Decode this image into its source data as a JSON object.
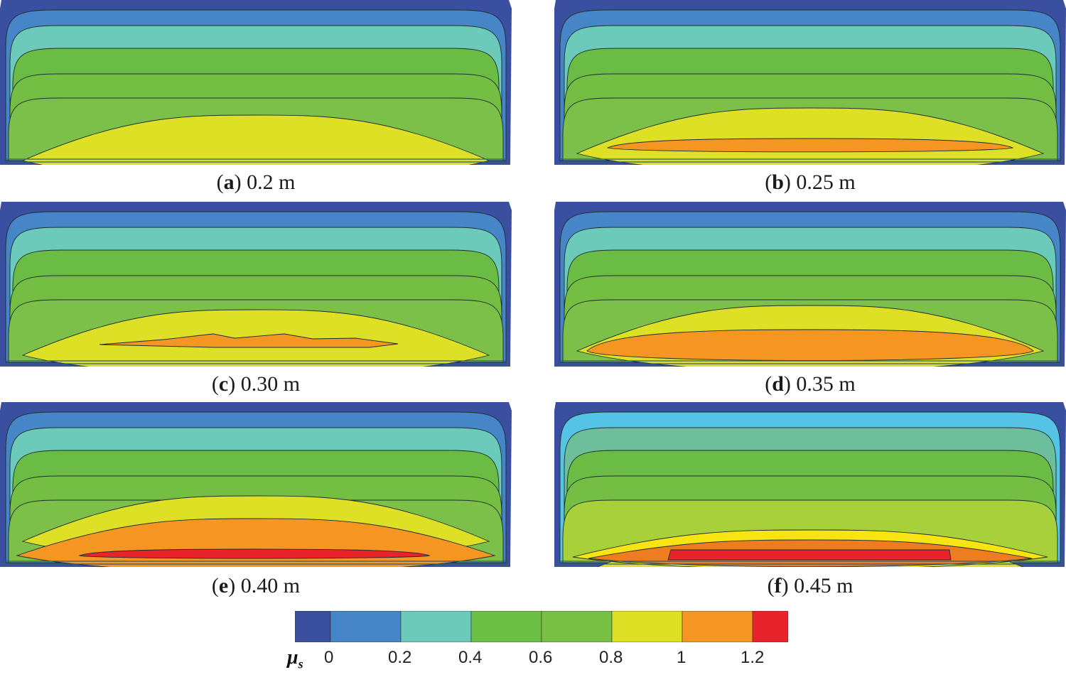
{
  "figure": {
    "panels": [
      {
        "id": "a",
        "letter": "a",
        "label": "0.2 m",
        "peak": "yellow"
      },
      {
        "id": "b",
        "letter": "b",
        "label": "0.25 m",
        "peak": "orange-thin"
      },
      {
        "id": "c",
        "letter": "c",
        "label": "0.30 m",
        "peak": "orange-sliver"
      },
      {
        "id": "d",
        "letter": "d",
        "label": "0.35 m",
        "peak": "orange"
      },
      {
        "id": "e",
        "letter": "e",
        "label": "0.40 m",
        "peak": "red"
      },
      {
        "id": "f",
        "letter": "f",
        "label": "0.45 m",
        "peak": "red-flat"
      }
    ]
  },
  "legend": {
    "symbol": "μ",
    "subscript": "s",
    "tick_labels": [
      "0",
      "0.2",
      "0.4",
      "0.6",
      "0.8",
      "1",
      "1.2"
    ],
    "colors": [
      "#3a4fa0",
      "#4585c8",
      "#6ccabb",
      "#6bbf45",
      "#78c044",
      "#dde024",
      "#f59622",
      "#e9232b"
    ]
  }
}
